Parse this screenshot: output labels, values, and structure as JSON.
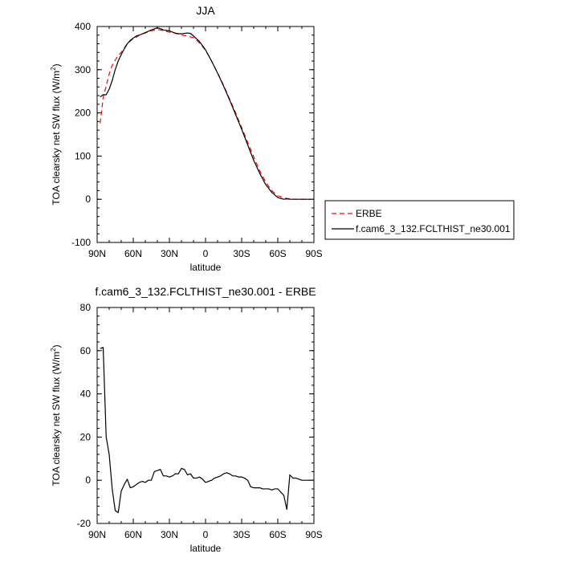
{
  "chart_data": [
    {
      "type": "line",
      "title": "JJA",
      "xlabel": "latitude",
      "ylabel": "TOA clearsky net SW flux (W/m",
      "ylabel_superscript": "2",
      "ylabel_suffix": ")",
      "xlim": [
        90,
        -90
      ],
      "ylim": [
        -100,
        400
      ],
      "x_ticks": [
        90,
        60,
        30,
        0,
        -30,
        -60,
        -90
      ],
      "x_tick_labels": [
        "90N",
        "60N",
        "30N",
        "0",
        "30S",
        "60S",
        "90S"
      ],
      "y_ticks": [
        -100,
        0,
        100,
        200,
        300,
        400
      ],
      "y_tick_labels": [
        "-100",
        "0",
        "100",
        "200",
        "300",
        "400"
      ],
      "legend_position": "right",
      "series": [
        {
          "name": "ERBE",
          "color": "#ff0000",
          "dash": "dashed",
          "x": [
            87.5,
            85,
            82.5,
            80,
            77.5,
            75,
            72.5,
            70,
            67.5,
            65,
            62.5,
            60,
            57.5,
            55,
            50,
            45,
            40,
            37.5,
            35,
            30,
            25,
            20,
            15,
            12.5,
            10,
            5,
            0,
            -5,
            -10,
            -15,
            -20,
            -25,
            -30,
            -35,
            -40,
            -45,
            -50,
            -55,
            -60,
            -62.5,
            -65,
            -67.5,
            -70,
            -75,
            -80,
            -85,
            -87.5
          ],
          "y": [
            176,
            235,
            262,
            290,
            310,
            322,
            333,
            340,
            350,
            360,
            366,
            372,
            375,
            380,
            385,
            390,
            393,
            392,
            390,
            387,
            385,
            380,
            378,
            376,
            374,
            362,
            345,
            320,
            293,
            264,
            232,
            200,
            166,
            132,
            98,
            66,
            40,
            20,
            8,
            6,
            3,
            2,
            1,
            0,
            0,
            0,
            0
          ]
        },
        {
          "name": "f.cam6_3_132.FCLTHIST_ne30.001",
          "color": "#000000",
          "dash": "solid",
          "x": [
            87.5,
            85,
            82.5,
            80,
            77.5,
            75,
            72.5,
            70,
            67.5,
            65,
            62.5,
            60,
            57.5,
            55,
            50,
            45,
            40,
            37.5,
            35,
            30,
            25,
            20,
            15,
            12.5,
            10,
            5,
            0,
            -5,
            -10,
            -15,
            -20,
            -25,
            -30,
            -35,
            -40,
            -45,
            -50,
            -55,
            -60,
            -62.5,
            -65,
            -67.5,
            -70,
            -75,
            -80,
            -85,
            -87.5
          ],
          "y": [
            237,
            242,
            242,
            255,
            275,
            300,
            320,
            335,
            348,
            360,
            368,
            373,
            378,
            380,
            386,
            392,
            397,
            395,
            392,
            390,
            384,
            383,
            385,
            384,
            378,
            365,
            346,
            320,
            292,
            262,
            230,
            196,
            162,
            126,
            90,
            60,
            34,
            16,
            4,
            2,
            0,
            1,
            0,
            0,
            0,
            0,
            0
          ]
        }
      ]
    },
    {
      "type": "line",
      "title": "f.cam6_3_132.FCLTHIST_ne30.001 - ERBE",
      "xlabel": "latitude",
      "ylabel": "TOA clearsky net SW flux (W/m",
      "ylabel_superscript": "2",
      "ylabel_suffix": ")",
      "xlim": [
        90,
        -90
      ],
      "ylim": [
        -20,
        80
      ],
      "x_ticks": [
        90,
        60,
        30,
        0,
        -30,
        -60,
        -90
      ],
      "x_tick_labels": [
        "90N",
        "60N",
        "30N",
        "0",
        "30S",
        "60S",
        "90S"
      ],
      "y_ticks": [
        -20,
        0,
        20,
        40,
        60,
        80
      ],
      "y_tick_labels": [
        "-20",
        "0",
        "20",
        "40",
        "60",
        "80"
      ],
      "series": [
        {
          "color": "#000000",
          "dash": "solid",
          "x": [
            87.5,
            85,
            82.5,
            80,
            77.5,
            75,
            72.5,
            70,
            67.5,
            65,
            62.5,
            60,
            57.5,
            55,
            52.5,
            50,
            47.5,
            45,
            42.5,
            40,
            37.5,
            35,
            32.5,
            30,
            27.5,
            25,
            22.5,
            20,
            17.5,
            15,
            12.5,
            10,
            7.5,
            5,
            2.5,
            0,
            -2.5,
            -5,
            -7.5,
            -10,
            -12.5,
            -15,
            -17.5,
            -20,
            -22.5,
            -25,
            -27.5,
            -30,
            -32.5,
            -35,
            -37.5,
            -40,
            -42.5,
            -45,
            -47.5,
            -50,
            -52.5,
            -55,
            -57.5,
            -60,
            -62.5,
            -65,
            -67.5,
            -70,
            -72.5,
            -75,
            -77.5,
            -80,
            -82.5,
            -85,
            -87.5
          ],
          "y": [
            61,
            61.5,
            20,
            12,
            -4,
            -14,
            -15,
            -5,
            -2,
            0.5,
            -3.5,
            -3,
            -2,
            -1,
            -0.5,
            -1,
            0,
            0,
            4,
            4.5,
            5,
            2,
            2,
            1.5,
            2,
            3,
            3,
            5.5,
            5,
            2.5,
            3,
            1,
            1,
            1.5,
            0.5,
            -1,
            -0.5,
            0,
            1,
            1.5,
            2,
            3,
            3.5,
            3,
            2,
            2,
            1.5,
            1.5,
            1,
            0,
            -3,
            -3.5,
            -3.5,
            -3.5,
            -4,
            -4,
            -4,
            -4.5,
            -4,
            -4,
            -5.5,
            -7,
            -13.5,
            2.5,
            1,
            1,
            0.5,
            0,
            0,
            0,
            0
          ]
        }
      ]
    }
  ]
}
